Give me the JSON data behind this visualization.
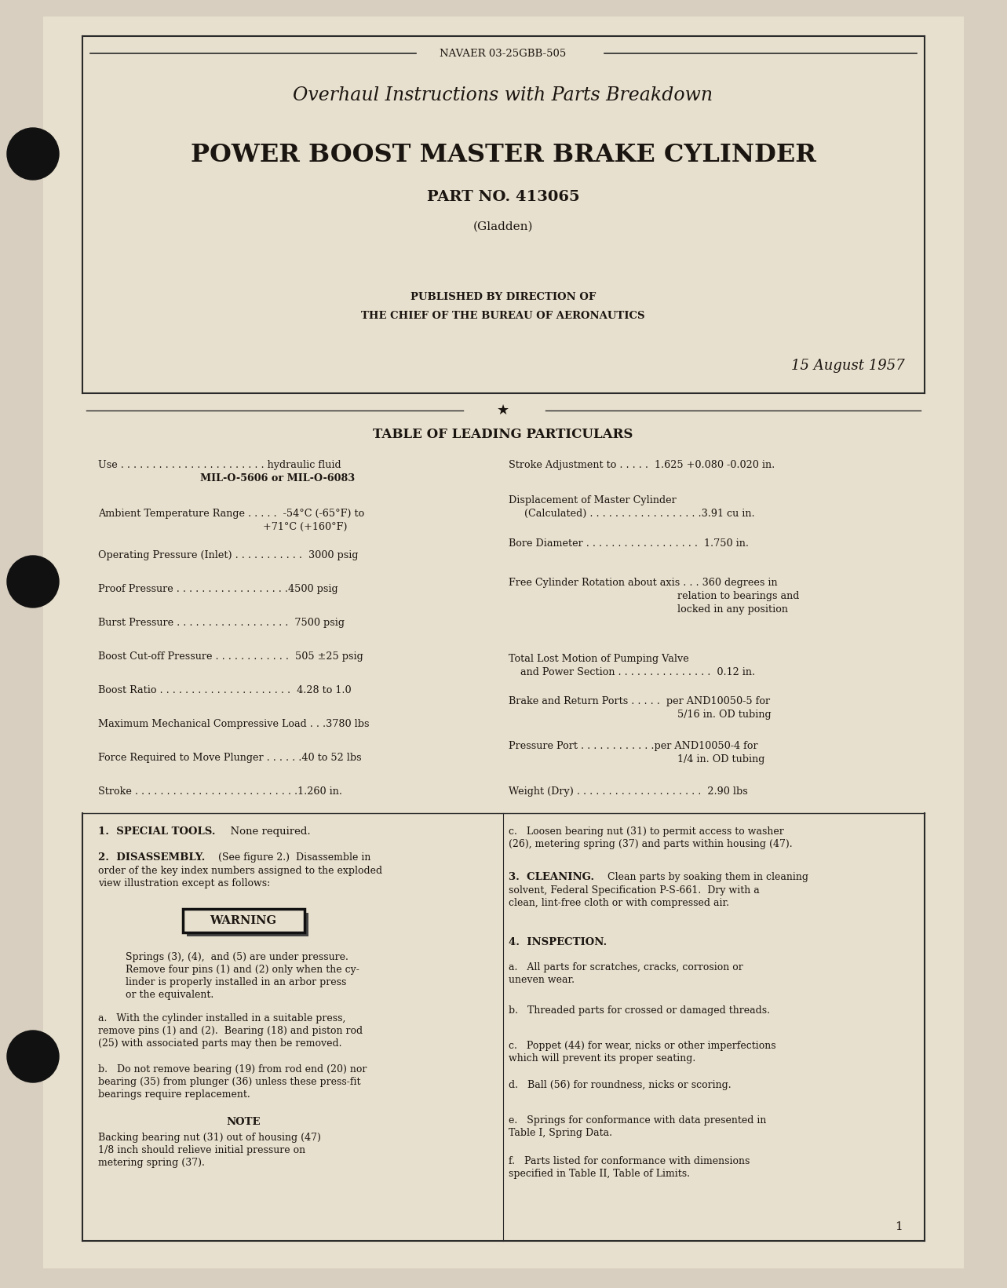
{
  "bg_color": "#d8cfc0",
  "page_bg": "#e8e0ce",
  "border_color": "#2a2a2a",
  "text_color": "#1a1510",
  "navaer": "NAVAER 03-25GBB-505",
  "title1": "Overhaul Instructions with Parts Breakdown",
  "title2": "POWER BOOST MASTER BRAKE CYLINDER",
  "part_no": "PART NO. 413065",
  "gladden": "(Gladden)",
  "published1": "PUBLISHED BY DIRECTION OF",
  "published2": "THE CHIEF OF THE BUREAU OF AERONAUTICS",
  "date": "15 August 1957",
  "table_title": "TABLE OF LEADING PARTICULARS",
  "page_number": "1"
}
